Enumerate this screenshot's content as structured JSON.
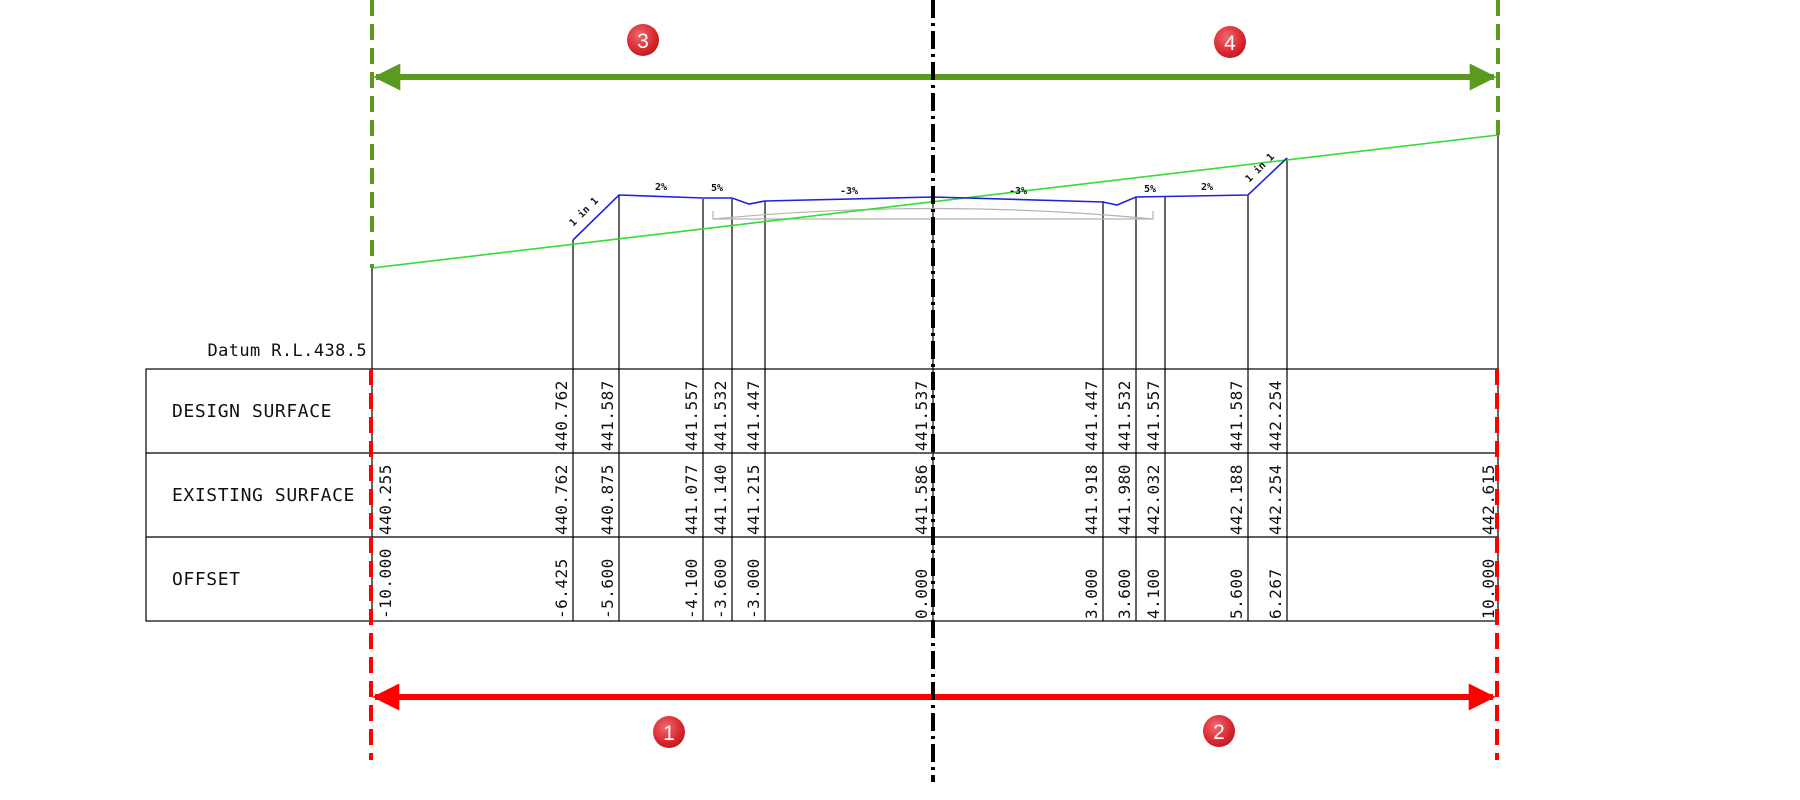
{
  "datum_label": "Datum R.L.438.5",
  "rows": [
    {
      "label": "DESIGN SURFACE"
    },
    {
      "label": "EXISTING SURFACE"
    },
    {
      "label": "OFFSET"
    }
  ],
  "columns": [
    {
      "design": "",
      "existing": "440.255",
      "offset": "-10.000"
    },
    {
      "design": "440.762",
      "existing": "440.762",
      "offset": "-6.425"
    },
    {
      "design": "441.587",
      "existing": "440.875",
      "offset": "-5.600"
    },
    {
      "design": "441.557",
      "existing": "441.077",
      "offset": "-4.100"
    },
    {
      "design": "441.532",
      "existing": "441.140",
      "offset": "-3.600"
    },
    {
      "design": "441.447",
      "existing": "441.215",
      "offset": "-3.000"
    },
    {
      "design": "441.537",
      "existing": "441.586",
      "offset": "0.000"
    },
    {
      "design": "441.447",
      "existing": "441.918",
      "offset": "3.000"
    },
    {
      "design": "441.532",
      "existing": "441.980",
      "offset": "3.600"
    },
    {
      "design": "441.557",
      "existing": "442.032",
      "offset": "4.100"
    },
    {
      "design": "441.587",
      "existing": "442.188",
      "offset": "5.600"
    },
    {
      "design": "442.254",
      "existing": "442.254",
      "offset": "6.267"
    },
    {
      "design": "",
      "existing": "442.615",
      "offset": "10.000"
    }
  ],
  "grade_labels": {
    "left_batter": "1 in 1",
    "left_verge": "2%",
    "left_shoulder": "5%",
    "left_lane": "-3%",
    "right_lane": "-3%",
    "right_shoulder": "5%",
    "right_verge": "2%",
    "right_batter": "1 in 1"
  },
  "markers": [
    {
      "label": "1",
      "color": "#e0333a"
    },
    {
      "label": "2",
      "color": "#e0333a"
    },
    {
      "label": "3",
      "color": "#e0333a"
    },
    {
      "label": "4",
      "color": "#e0333a"
    }
  ],
  "colors": {
    "green_extent": "#5a9a1e",
    "red_extent": "#ff0000",
    "natural_surface": "#33dd33",
    "design_surface": "#2222dd",
    "pavement": "#b4b4b4",
    "linework": "#000000"
  }
}
